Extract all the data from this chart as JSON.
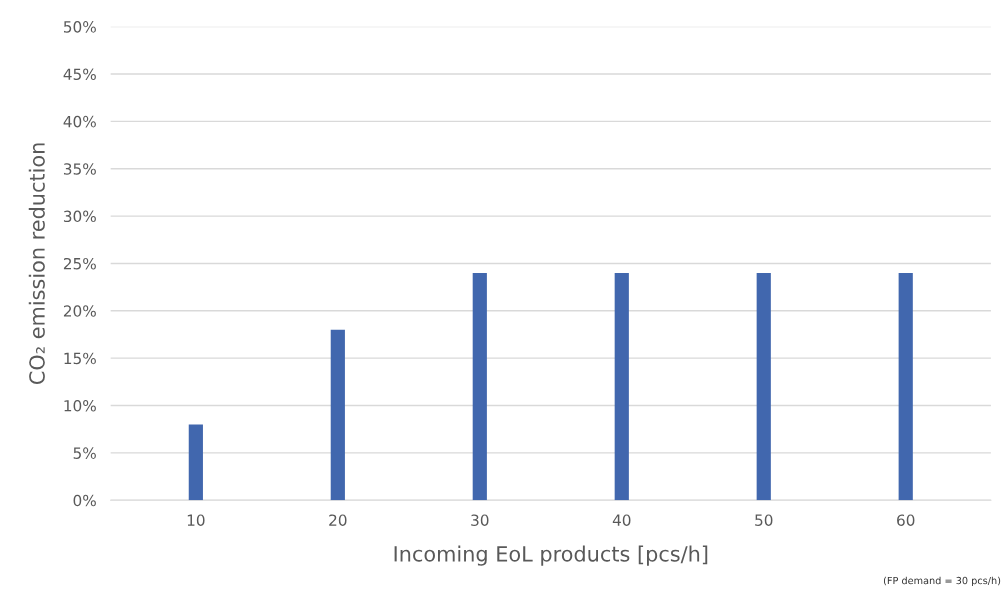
{
  "chart_data": {
    "type": "bar",
    "xlabel": "Incoming EoL products [pcs/h]",
    "ylabel": "CO₂ emission reduction",
    "categories": [
      "10",
      "20",
      "30",
      "40",
      "50",
      "60"
    ],
    "values": [
      8,
      18,
      24,
      24,
      24,
      24
    ],
    "color": "#4167ae",
    "ylim": [
      0,
      50
    ],
    "yticks": [
      {
        "value": 0,
        "label": "0%"
      },
      {
        "value": 5,
        "label": "5%"
      },
      {
        "value": 10,
        "label": "10%"
      },
      {
        "value": 15,
        "label": "15%"
      },
      {
        "value": 20,
        "label": "20%"
      },
      {
        "value": 25,
        "label": "25%"
      },
      {
        "value": 30,
        "label": "30%"
      },
      {
        "value": 35,
        "label": "35%"
      },
      {
        "value": 40,
        "label": "40%"
      },
      {
        "value": 45,
        "label": "45%"
      },
      {
        "value": 50,
        "label": "50%"
      }
    ],
    "grid": "y",
    "annotations": [
      "(FP demand = 30 pcs/h)"
    ]
  }
}
